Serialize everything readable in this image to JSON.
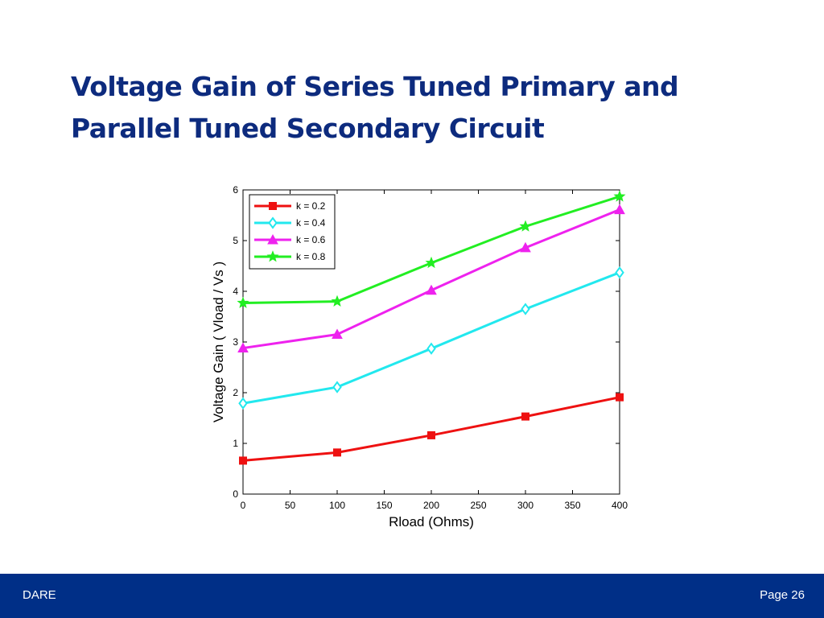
{
  "slide": {
    "title_line1": "Voltage Gain of Series Tuned Primary and",
    "title_line2": "Parallel Tuned Secondary Circuit"
  },
  "footer": {
    "left": "DARE",
    "right": "Page 26",
    "color": "#002f87"
  },
  "chart_data": {
    "type": "line",
    "title": "",
    "xlabel": "Rload (Ohms)",
    "ylabel": "Voltage Gain ( Vload / Vs )",
    "xlim": [
      0,
      400
    ],
    "ylim": [
      0,
      6
    ],
    "xticks": [
      0,
      50,
      100,
      150,
      200,
      250,
      300,
      350,
      400
    ],
    "yticks": [
      0,
      1,
      2,
      3,
      4,
      5,
      6
    ],
    "grid": false,
    "legend_position": "top-left",
    "x": [
      0,
      100,
      200,
      300,
      400
    ],
    "series": [
      {
        "name": "k = 0.2",
        "color": "#ee1111",
        "marker": "square",
        "values": [
          0.66,
          0.82,
          1.16,
          1.53,
          1.91
        ]
      },
      {
        "name": "k = 0.4",
        "color": "#22e8ee",
        "marker": "diamond",
        "values": [
          1.79,
          2.11,
          2.87,
          3.65,
          4.37
        ]
      },
      {
        "name": "k = 0.6",
        "color": "#ee22ee",
        "marker": "triangle",
        "values": [
          2.88,
          3.15,
          4.02,
          4.86,
          5.61
        ]
      },
      {
        "name": "k = 0.8",
        "color": "#22ee22",
        "marker": "star",
        "values": [
          3.77,
          3.8,
          4.56,
          5.28,
          5.87
        ]
      }
    ]
  }
}
